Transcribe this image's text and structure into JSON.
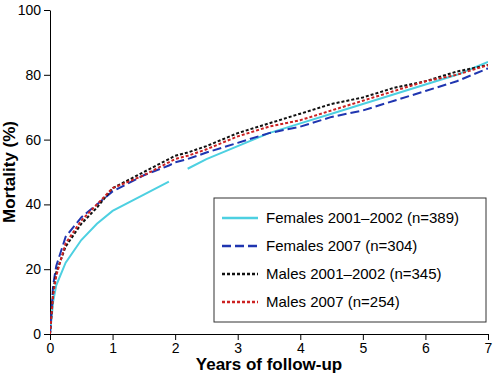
{
  "chart_data": {
    "type": "line",
    "x_label": "Years of follow-up",
    "y_label": "Mortality (%)",
    "x": [
      0,
      0.05,
      0.1,
      0.25,
      0.5,
      0.75,
      1,
      1.5,
      1.9,
      2,
      2.2,
      2.5,
      3,
      3.5,
      4,
      4.5,
      5,
      5.5,
      6,
      6.5,
      7
    ],
    "series": [
      {
        "name": "Females 2001–2002 (n=389)",
        "color": "#4dd0e1",
        "line_style": "solid",
        "values": [
          0,
          10,
          15,
          22,
          29,
          34,
          38,
          43,
          47,
          null,
          51,
          54,
          58,
          62,
          65,
          68,
          71,
          74,
          77,
          80,
          84
        ]
      },
      {
        "name": "Females 2007 (n=304)",
        "color": "#1f35b0",
        "line_style": "dashed",
        "values": [
          0,
          15,
          21,
          30,
          36,
          40,
          44,
          49,
          52,
          53,
          54,
          56,
          59,
          62,
          64,
          67,
          69,
          72,
          75,
          78,
          82
        ]
      },
      {
        "name": "Males 2001–2002 (n=345)",
        "color": "#111111",
        "line_style": "dotted",
        "values": [
          0,
          13,
          19,
          27,
          34,
          39,
          45,
          50,
          54,
          55,
          56,
          58,
          62,
          65,
          68,
          71,
          73,
          76,
          78,
          81,
          83
        ]
      },
      {
        "name": "Males 2007 (n=254)",
        "color": "#cc2222",
        "line_style": "dotted",
        "values": [
          0,
          12,
          18,
          28,
          35,
          40,
          45,
          49,
          53,
          54,
          55,
          57,
          61,
          64,
          66,
          69,
          72,
          75,
          78,
          80,
          83
        ]
      }
    ],
    "xlim": [
      0,
      7
    ],
    "xticks": [
      0,
      1,
      2,
      3,
      4,
      5,
      6,
      7
    ],
    "ylim": [
      0,
      100
    ],
    "yticks": [
      0,
      20,
      40,
      60,
      80,
      100
    ],
    "grid": false,
    "legend": "lower right"
  }
}
